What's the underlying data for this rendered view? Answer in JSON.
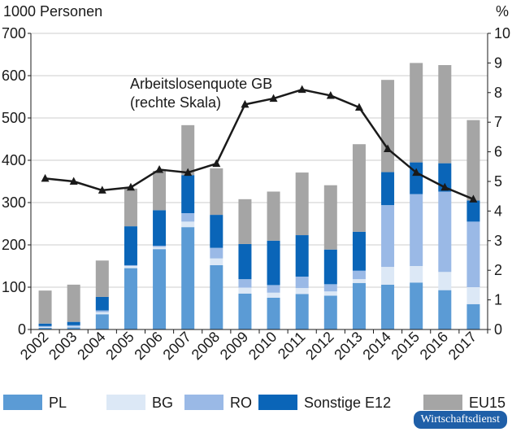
{
  "chart_data": {
    "type": "bar",
    "stacked": true,
    "categories": [
      "2002",
      "2003",
      "2004",
      "2005",
      "2006",
      "2007",
      "2008",
      "2009",
      "2010",
      "2011",
      "2012",
      "2013",
      "2014",
      "2015",
      "2016",
      "2017"
    ],
    "series": [
      {
        "name": "PL",
        "color": "#5b9bd5",
        "values": [
          4,
          5,
          36,
          145,
          190,
          242,
          152,
          85,
          75,
          84,
          80,
          110,
          106,
          111,
          93,
          60
        ]
      },
      {
        "name": "BG",
        "color": "#dce8f6",
        "values": [
          2,
          2,
          5,
          5,
          5,
          13,
          16,
          14,
          12,
          14,
          10,
          9,
          42,
          39,
          43,
          40
        ]
      },
      {
        "name": "RO",
        "color": "#9ab9e6",
        "values": [
          2,
          3,
          4,
          2,
          3,
          20,
          25,
          20,
          18,
          27,
          17,
          20,
          146,
          170,
          190,
          155
        ]
      },
      {
        "name": "Sonstige E12",
        "color": "#0a65b8",
        "values": [
          6,
          8,
          32,
          92,
          84,
          90,
          78,
          83,
          105,
          98,
          82,
          92,
          78,
          75,
          67,
          50
        ]
      },
      {
        "name": "EU15",
        "color": "#a5a5a5",
        "values": [
          78,
          88,
          86,
          89,
          93,
          118,
          110,
          106,
          116,
          148,
          152,
          207,
          218,
          235,
          232,
          190
        ]
      }
    ],
    "line": {
      "name": "Arbeitslosenquote GB (rechte Skala)",
      "color": "#1a1a1a",
      "axis": "right",
      "values": [
        5.1,
        5.0,
        4.7,
        4.8,
        5.4,
        5.3,
        5.6,
        7.6,
        7.8,
        8.1,
        7.9,
        7.5,
        6.1,
        5.3,
        4.8,
        4.4
      ]
    },
    "annotation": [
      "Arbeitslosenquote GB",
      "(rechte Skala)"
    ],
    "left_axis": {
      "label": "1000 Personen",
      "ylim": [
        0,
        700
      ],
      "ticks": [
        0,
        100,
        200,
        300,
        400,
        500,
        600,
        700
      ]
    },
    "right_axis": {
      "label": "%",
      "ylim": [
        0,
        10
      ],
      "ticks": [
        0,
        1,
        2,
        3,
        4,
        5,
        6,
        7,
        8,
        9,
        10
      ]
    },
    "legend_position": "bottom",
    "grid": true
  },
  "badge": "Wirtschaftsdienst"
}
